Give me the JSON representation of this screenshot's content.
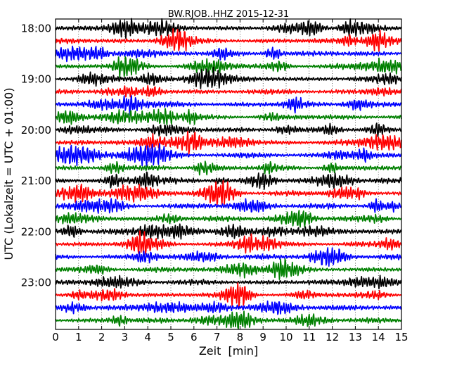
{
  "chart_data": {
    "type": "line",
    "title": "BW.RJOB..HHZ 2015-12-31",
    "xlabel": "Zeit  [min]",
    "ylabel": "UTC (Lokalzeit = UTC + 01:00)",
    "xlim": [
      0,
      15
    ],
    "x_ticks": [
      "0",
      "1",
      "2",
      "3",
      "4",
      "5",
      "6",
      "7",
      "8",
      "9",
      "10",
      "11",
      "12",
      "13",
      "14",
      "15"
    ],
    "y_ticks": [
      "18:00",
      "19:00",
      "20:00",
      "21:00",
      "22:00",
      "23:00"
    ],
    "grid": "vertical dotted",
    "trace_interval_minutes": 15,
    "trace_count": 24,
    "trace_colors": [
      "#000000",
      "#ff0000",
      "#0000ff",
      "#008000"
    ],
    "notes": "Dayplot of seismic traces, one 15-minute trace per row from 18:00 to 23:45 UTC; waveform amplitudes are not legible as values."
  }
}
